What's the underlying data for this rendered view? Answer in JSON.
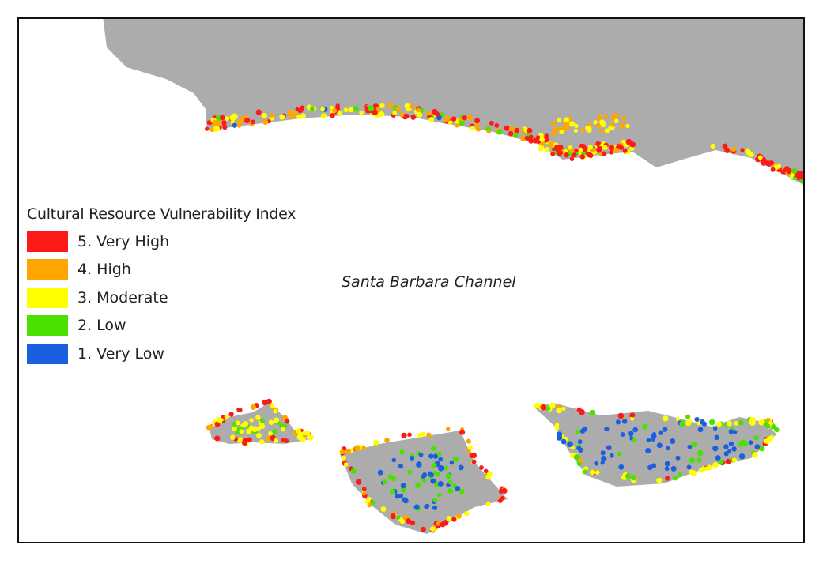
{
  "legend": {
    "title": "Cultural Resource Vulnerability Index",
    "items": [
      {
        "label": "5. Very High",
        "color": "#ff1a1a"
      },
      {
        "label": "4. High",
        "color": "#ffa500"
      },
      {
        "label": "3. Moderate",
        "color": "#ffff00"
      },
      {
        "label": "2. Low",
        "color": "#4ae000"
      },
      {
        "label": "1. Very Low",
        "color": "#1a5fe0"
      }
    ]
  },
  "labels": {
    "water_body": "Santa Barbara Channel"
  },
  "colors": {
    "land": "#acacac",
    "water": "#ffffff",
    "border": "#111111"
  }
}
